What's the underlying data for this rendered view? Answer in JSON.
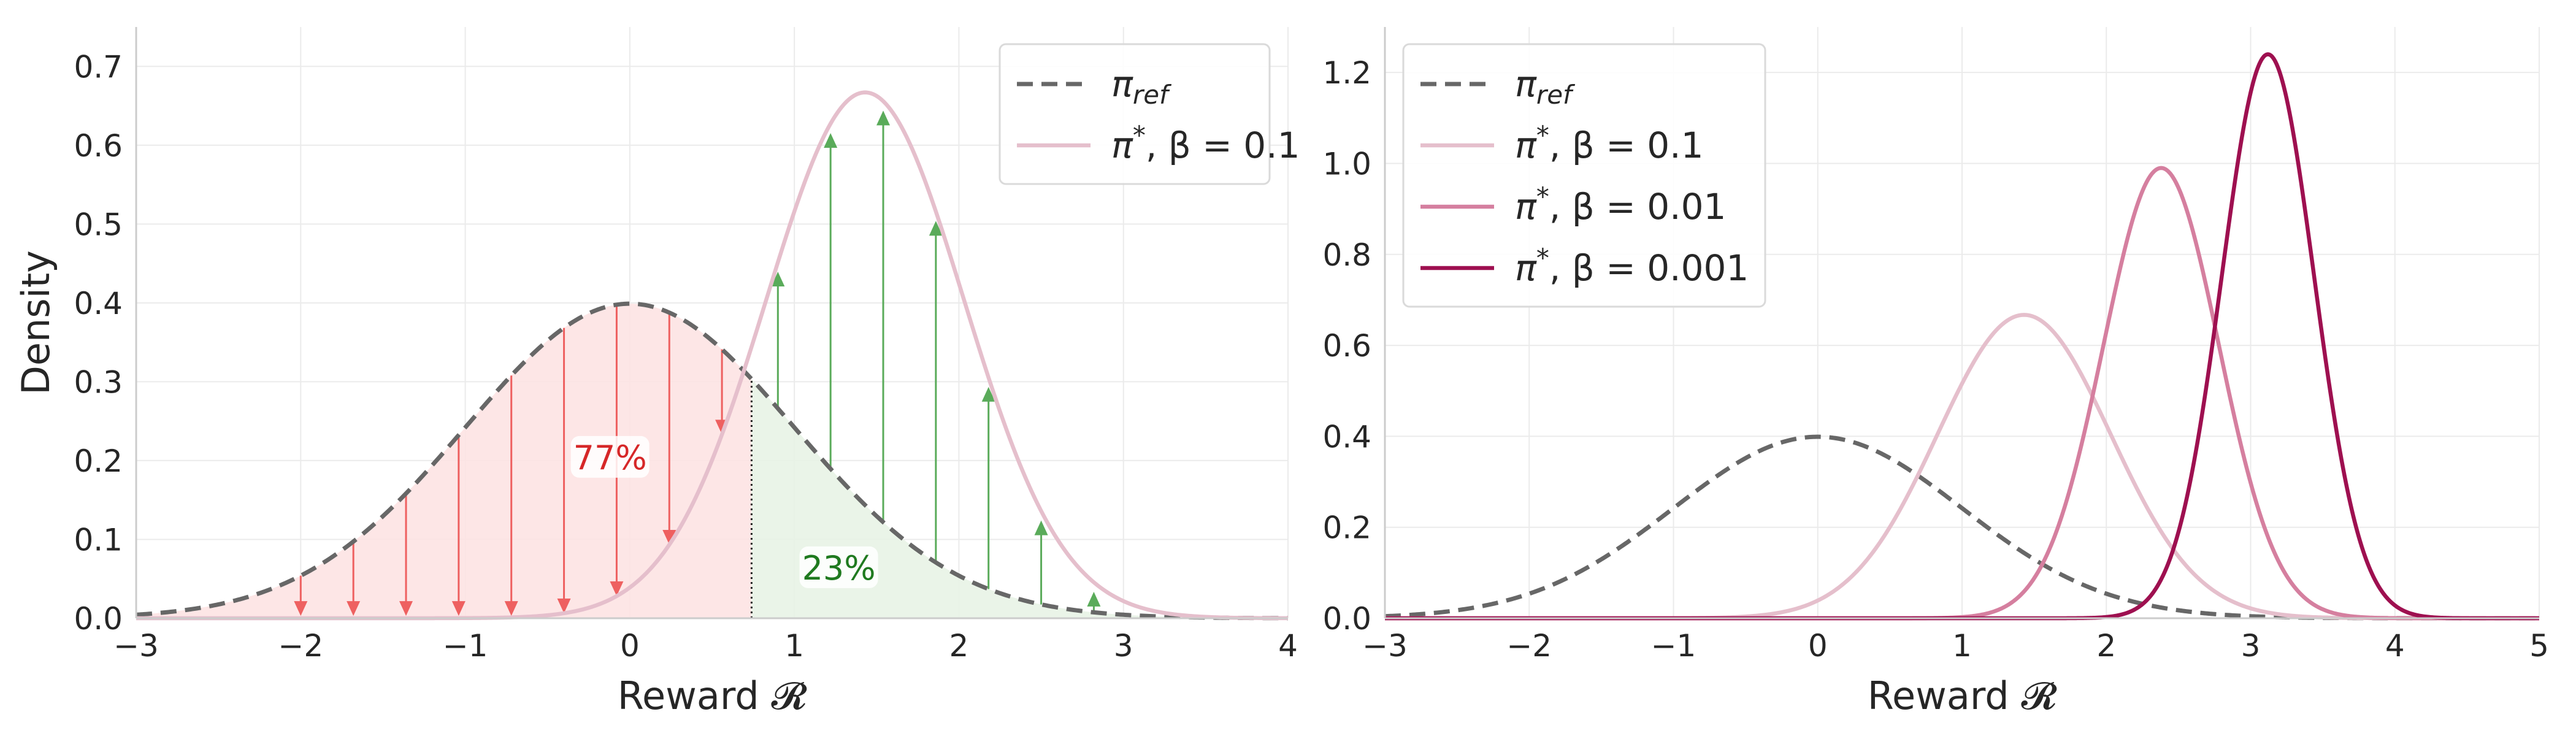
{
  "chart_data": [
    {
      "type": "line",
      "xlabel": "Reward 𝓡",
      "ylabel": "Density",
      "xlim": [
        -3,
        4
      ],
      "ylim": [
        0,
        0.75
      ],
      "xticks": [
        "−3",
        "−2",
        "−1",
        "0",
        "1",
        "2",
        "3",
        "4"
      ],
      "yticks": [
        "0.0",
        "0.1",
        "0.2",
        "0.3",
        "0.4",
        "0.5",
        "0.6",
        "0.7"
      ],
      "grid": true,
      "legend_position": "top-right",
      "series": [
        {
          "name_parts": [
            "π",
            "ref",
            ""
          ],
          "color": "#676767",
          "dash": true,
          "mean": 0,
          "std": 1,
          "peak": 0.399
        },
        {
          "name_parts": [
            "π",
            "*",
            ", β = 0.1"
          ],
          "color": "#e5bfcc",
          "dash": false,
          "mean": 1.43,
          "std": 0.6,
          "peak": 0.667
        }
      ],
      "threshold_x": 0.74,
      "regions": [
        {
          "label": "77%",
          "color": "#d62728",
          "fill": "#fde3e3",
          "label_x": -0.12,
          "label_y": 0.2
        },
        {
          "label": "23%",
          "color": "#1f7a1f",
          "fill": "#e8f3e6",
          "label_x": 1.27,
          "label_y": 0.06
        }
      ],
      "arrows_down": {
        "color": "#ee6060",
        "x": [
          -2.0,
          -1.68,
          -1.36,
          -1.04,
          -0.72,
          -0.4,
          -0.08,
          0.24,
          0.56
        ]
      },
      "arrows_up": {
        "color": "#5aab5a",
        "x": [
          0.9,
          1.22,
          1.54,
          1.86,
          2.18,
          2.5,
          2.82
        ]
      }
    },
    {
      "type": "line",
      "xlabel": "Reward 𝓡",
      "ylabel": "",
      "xlim": [
        -3,
        5
      ],
      "ylim": [
        0,
        1.3
      ],
      "xticks": [
        "−3",
        "−2",
        "−1",
        "0",
        "1",
        "2",
        "3",
        "4",
        "5"
      ],
      "yticks": [
        "0.0",
        "0.2",
        "0.4",
        "0.6",
        "0.8",
        "1.0",
        "1.2"
      ],
      "grid": true,
      "legend_position": "top-left",
      "series": [
        {
          "name_parts": [
            "π",
            "ref",
            ""
          ],
          "color": "#676767",
          "dash": true,
          "mean": 0,
          "std": 1,
          "peak": 0.399
        },
        {
          "name_parts": [
            "π",
            "*",
            ", β = 0.1"
          ],
          "color": "#e5bfcc",
          "dash": false,
          "mean": 1.43,
          "std": 0.6,
          "peak": 0.667
        },
        {
          "name_parts": [
            "π",
            "*",
            ", β = 0.01"
          ],
          "color": "#d57f9f",
          "dash": false,
          "mean": 2.38,
          "std": 0.4,
          "peak": 0.99
        },
        {
          "name_parts": [
            "π",
            "*",
            ", β = 0.001"
          ],
          "color": "#9e1050",
          "dash": false,
          "mean": 3.12,
          "std": 0.32,
          "peak": 1.24
        }
      ]
    }
  ]
}
